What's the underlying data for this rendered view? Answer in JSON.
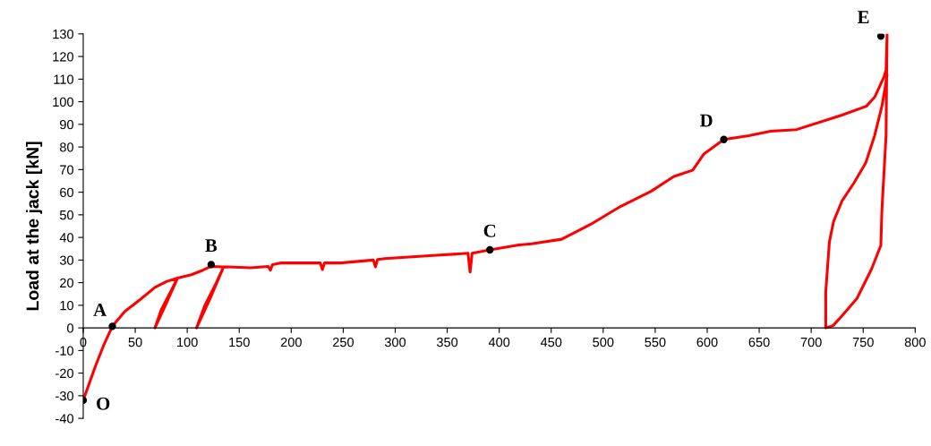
{
  "chart_data": {
    "type": "line",
    "ylabel": "Load at the jack [kN]",
    "xlim": [
      0,
      800
    ],
    "ylim": [
      -40,
      130
    ],
    "xticks": [
      0,
      50,
      100,
      150,
      200,
      250,
      300,
      350,
      400,
      450,
      500,
      550,
      600,
      650,
      700,
      750,
      800
    ],
    "yticks": [
      -40,
      -30,
      -20,
      -10,
      0,
      10,
      20,
      30,
      40,
      50,
      60,
      70,
      80,
      90,
      100,
      110,
      120,
      130
    ],
    "grid": false,
    "marker": "none",
    "line_style": "solid",
    "series": [
      {
        "color": "#ff0000",
        "x": [
          0,
          12,
          20,
          28,
          40,
          55,
          69,
          80,
          90.7,
          80,
          69,
          75,
          84,
          90.7,
          104,
          115,
          123,
          135,
          122,
          109,
          117,
          128,
          135,
          161,
          178,
          180,
          182,
          189.5,
          228,
          230,
          232,
          247,
          279,
          281,
          283,
          290,
          333,
          370,
          372,
          374,
          391,
          419,
          431,
          460,
          488,
          517,
          546,
          568,
          586,
          597,
          616,
          640,
          661,
          686,
          729,
          753,
          761,
          770,
          772,
          773,
          772,
          768,
          767,
          758,
          744,
          729,
          721,
          714,
          714,
          717.5,
          721.5,
          729.5,
          741,
          752.5,
          761,
          768,
          771,
          773
        ],
        "values": [
          -32,
          -16.6,
          -7.3,
          0.7,
          7.3,
          12.6,
          17.9,
          20.5,
          22,
          11,
          0,
          8,
          16,
          22,
          23.5,
          25.5,
          27.2,
          27,
          13,
          0,
          10,
          20,
          27,
          26.6,
          27.2,
          25.5,
          28,
          28.7,
          28.7,
          25.8,
          28.7,
          28.7,
          30,
          27,
          30.2,
          30.6,
          31.9,
          33,
          24.7,
          33,
          34.5,
          36.7,
          37.2,
          39.2,
          45.8,
          53.8,
          60.4,
          67,
          69.7,
          77,
          83.3,
          85,
          87,
          87.7,
          94,
          98,
          102,
          111,
          114,
          130,
          85,
          52,
          36.5,
          26,
          13,
          5,
          1,
          0,
          15.7,
          38,
          47,
          56,
          64,
          73,
          85,
          98,
          106,
          112
        ]
      }
    ],
    "annotations": [
      {
        "text": "O",
        "x": 0,
        "y": -32
      },
      {
        "text": "A",
        "x": 28,
        "y": 0.7
      },
      {
        "text": "B",
        "x": 123,
        "y": 28
      },
      {
        "text": "C",
        "x": 391,
        "y": 34.5
      },
      {
        "text": "D",
        "x": 616,
        "y": 83.3
      },
      {
        "text": "E",
        "x": 767,
        "y": 129
      }
    ]
  }
}
